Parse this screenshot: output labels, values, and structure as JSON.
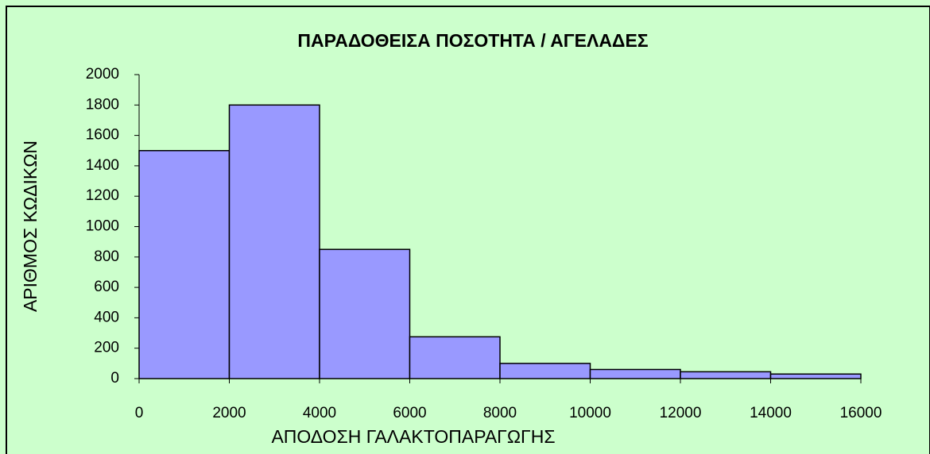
{
  "chart_data": {
    "type": "histogram",
    "title": "ΠΑΡΑΔΟΘΕΙΣΑ ΠΟΣΟΤΗΤΑ / ΑΓΕΛΑΔΕΣ",
    "x_label": "ΑΠΟΔΟΣΗ ΓΑΛΑΚΤΟΠΑΡΑΓΩΓΗΣ",
    "y_label": "ΑΡΙΘΜΟΣ ΚΩΔΙΚΩΝ",
    "bins": [
      0,
      2000,
      4000,
      6000,
      8000,
      10000,
      12000,
      14000,
      16000
    ],
    "values": [
      1500,
      1800,
      850,
      275,
      100,
      60,
      45,
      30
    ],
    "color": "#9999ff",
    "xlim": [
      0,
      16000
    ],
    "xticks": [
      0,
      2000,
      4000,
      6000,
      8000,
      10000,
      12000,
      14000,
      16000
    ],
    "ylim": [
      0,
      2000
    ],
    "yticks": [
      0,
      200,
      400,
      600,
      800,
      1000,
      1200,
      1400,
      1600,
      1800,
      2000
    ]
  }
}
